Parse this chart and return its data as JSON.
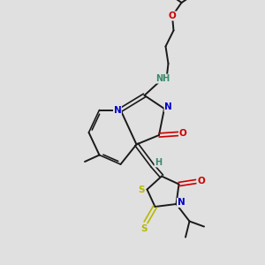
{
  "bg_color": "#e0e0e0",
  "bond_color": "#1a1a1a",
  "N_color": "#0000cc",
  "O_color": "#cc0000",
  "S_color": "#b8b800",
  "H_color": "#3a8a6a",
  "figsize": [
    3.0,
    3.0
  ],
  "dpi": 100,
  "xlim": [
    0,
    10
  ],
  "ylim": [
    0,
    10
  ]
}
